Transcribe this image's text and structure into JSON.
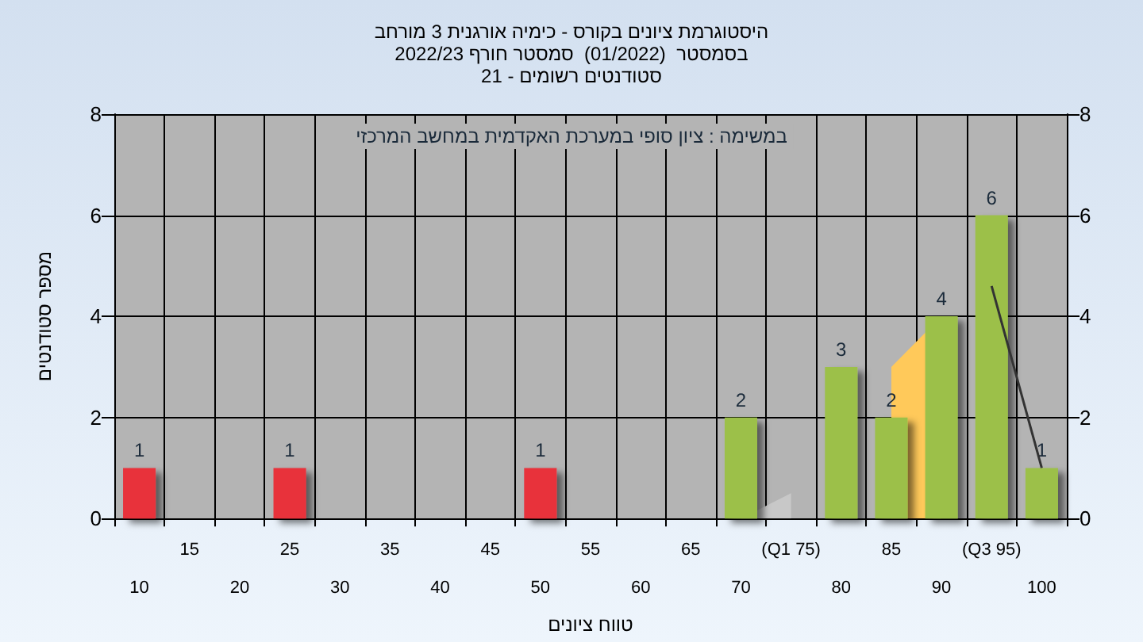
{
  "chart_data": {
    "type": "bar",
    "title": "היסטוגרמת ציונים בקורס - כימיה אורגנית 3 מורחב",
    "subtitle": "בסמסטר  (01/2022)  סמסטר חורף 2022/23\nסטודנטים רשומים - 21",
    "xlabel": "טווח ציונים",
    "ylabel": "מספר סטודנטים",
    "annotations": [
      "במשימה : ציון סופי במערכת האקדמית במחשב המרכזי"
    ],
    "categories": [
      "10",
      "15",
      "20",
      "25",
      "30",
      "35",
      "40",
      "45",
      "50",
      "55",
      "60",
      "65",
      "70",
      "(Q1 75)",
      "80",
      "85",
      "90",
      "(Q3 95)",
      "100"
    ],
    "series": [
      {
        "type": "area",
        "color": "#c8c8c8",
        "values": [
          null,
          null,
          null,
          null,
          null,
          null,
          null,
          null,
          null,
          null,
          null,
          null,
          0,
          0.5,
          null,
          null,
          null,
          null,
          null
        ]
      },
      {
        "type": "area",
        "color": "#ffc95a",
        "values": [
          null,
          null,
          null,
          null,
          null,
          null,
          null,
          null,
          null,
          null,
          null,
          null,
          null,
          null,
          null,
          3,
          4,
          null,
          null
        ]
      },
      {
        "type": "line",
        "color": "#333333",
        "values": [
          null,
          null,
          null,
          null,
          null,
          null,
          null,
          null,
          null,
          null,
          null,
          null,
          null,
          null,
          null,
          null,
          null,
          4.6,
          1
        ]
      },
      {
        "colors": [
          "#e8303a",
          null,
          null,
          "#e8303a",
          null,
          null,
          null,
          null,
          "#e8303a",
          null,
          null,
          null,
          "#9cc04a",
          "#9cc04a",
          "#9cc04a",
          "#9cc04a",
          "#9cc04a",
          "#9cc04a",
          "#9cc04a"
        ],
        "values": [
          1,
          null,
          null,
          1,
          null,
          null,
          null,
          null,
          1,
          null,
          null,
          null,
          2,
          null,
          3,
          2,
          4,
          6,
          1
        ],
        "data_labels": true
      }
    ],
    "ylim": [
      0,
      8
    ],
    "yticks": [
      0,
      2,
      4,
      6,
      8
    ],
    "y2lim": [
      0,
      8
    ],
    "y2ticks": [
      0,
      2,
      4,
      6,
      8
    ],
    "grid": true
  }
}
